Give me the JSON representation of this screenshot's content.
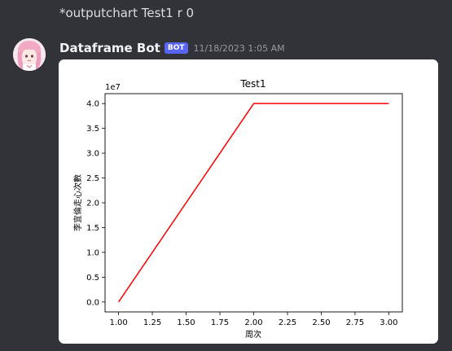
{
  "command": {
    "text": "*outputchart Test1 r 0"
  },
  "message": {
    "author": "Dataframe Bot",
    "badge": "BOT",
    "timestamp": "11/18/2023 1:05 AM"
  },
  "chart_data": {
    "type": "line",
    "title": "Test1",
    "xlabel": "周次",
    "ylabel": "李宜倫走心次數",
    "y_offset_label": "1e7",
    "x": [
      1.0,
      2.0,
      3.0
    ],
    "series": [
      {
        "values": [
          0.0,
          4.0,
          4.0
        ],
        "color": "#ff0000"
      }
    ],
    "xlim": [
      0.9,
      3.1
    ],
    "ylim": [
      -0.2,
      4.2
    ],
    "x_ticks": [
      "1.00",
      "1.25",
      "1.50",
      "1.75",
      "2.00",
      "2.25",
      "2.50",
      "2.75",
      "3.00"
    ],
    "y_ticks": [
      "0.0",
      "0.5",
      "1.0",
      "1.5",
      "2.0",
      "2.5",
      "3.0",
      "3.5",
      "4.0"
    ],
    "grid": false
  },
  "colors": {
    "background": "#313338",
    "badge": "#5865f2",
    "line": "#ff0000"
  }
}
